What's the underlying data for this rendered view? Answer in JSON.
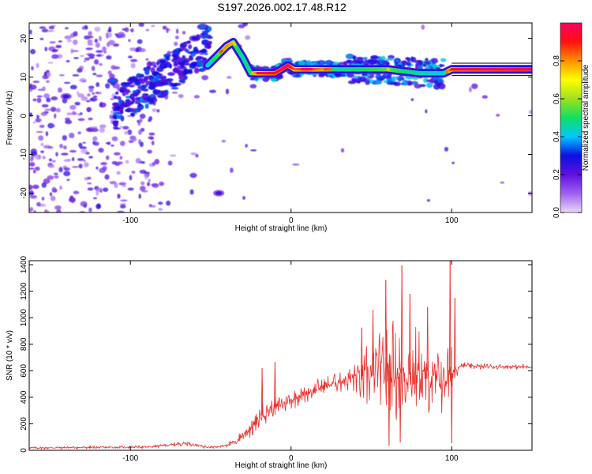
{
  "title": "S197.2026.002.17.48.R12",
  "chart_data": [
    {
      "type": "heatmap",
      "name": "spectrogram",
      "xlabel": "Height of straight line (km)",
      "ylabel": "Frequency (Hz)",
      "xlim": [
        -163,
        150
      ],
      "ylim": [
        -25,
        24
      ],
      "xticks": [
        -100,
        0,
        100
      ],
      "yticks": [
        -20,
        -10,
        0,
        10,
        20
      ],
      "colorbar": {
        "label": "Normalized spectral amplitude",
        "range": [
          0,
          1
        ],
        "ticks": [
          0.0,
          0.2,
          0.4,
          0.6,
          0.8
        ],
        "colors": [
          "#e8d8f8",
          "#a060f0",
          "#6010e0",
          "#0a10e0",
          "#00c8ff",
          "#10e060",
          "#a0e020",
          "#ffff00",
          "#ff9000",
          "#ff1010",
          "#ff0060"
        ]
      },
      "ridge": {
        "x": [
          -52,
          -40,
          -36,
          -30,
          -25,
          -20,
          -10,
          -2,
          2,
          10,
          30,
          60,
          80,
          95,
          100,
          150
        ],
        "freq": [
          13,
          18,
          19,
          15,
          11,
          11,
          11,
          13,
          12,
          12,
          12,
          12,
          11,
          11,
          12,
          12
        ],
        "amplitude": [
          0.45,
          0.7,
          0.6,
          0.5,
          0.55,
          0.8,
          0.9,
          0.95,
          0.75,
          0.85,
          0.5,
          0.6,
          0.5,
          0.45,
          0.85,
          0.95
        ]
      },
      "patches": [
        {
          "x": -108,
          "freq": 2,
          "amplitude": 0.3
        },
        {
          "x": -111,
          "freq": 9,
          "amplitude": 0.35
        },
        {
          "x": -80,
          "freq": 14,
          "amplitude": 0.3
        },
        {
          "x": -60,
          "freq": 20,
          "amplitude": 0.3
        },
        {
          "x": -55,
          "freq": 23,
          "amplitude": 0.35
        },
        {
          "x": -45,
          "freq": -20,
          "amplitude": 0.25
        },
        {
          "x": -140,
          "freq": 5,
          "amplitude": 0.25
        }
      ]
    },
    {
      "type": "line",
      "name": "snr",
      "xlabel": "Height of straight line (km)",
      "ylabel": "SNR (10 * v/v)",
      "xlim": [
        -163,
        150
      ],
      "ylim": [
        0,
        1430
      ],
      "xticks": [
        -100,
        0,
        100
      ],
      "yticks": [
        0,
        200,
        400,
        600,
        800,
        1000,
        1200,
        1400
      ],
      "color": "#e8302a",
      "series": [
        {
          "name": "SNR",
          "envelope": {
            "x": [
              -163,
              -90,
              -75,
              -65,
              -55,
              -45,
              -35,
              -25,
              -15,
              -5,
              5,
              20,
              30,
              40,
              50,
              60,
              70,
              80,
              90,
              98,
              105,
              120,
              150
            ],
            "mean": [
              18,
              25,
              40,
              55,
              30,
              25,
              60,
              170,
              300,
              350,
              410,
              480,
              520,
              560,
              560,
              600,
              580,
              560,
              520,
              560,
              640,
              630,
              630
            ],
            "amp": [
              10,
              12,
              18,
              25,
              15,
              12,
              30,
              90,
              110,
              90,
              80,
              80,
              90,
              160,
              330,
              420,
              430,
              380,
              270,
              320,
              30,
              25,
              22
            ]
          },
          "spikes": [
            {
              "x": -18,
              "y": 620
            },
            {
              "x": -10,
              "y": 665
            },
            {
              "x": 44,
              "y": 925
            },
            {
              "x": 51,
              "y": 1060
            },
            {
              "x": 59,
              "y": 1285
            },
            {
              "x": 69,
              "y": 1395
            },
            {
              "x": 74,
              "y": 1180
            },
            {
              "x": 85,
              "y": 1080
            },
            {
              "x": 99,
              "y": 1430
            },
            {
              "x": 102,
              "y": 1150
            },
            {
              "x": 61,
              "y": 35
            },
            {
              "x": 68,
              "y": 60
            },
            {
              "x": 100,
              "y": 55
            }
          ]
        }
      ]
    }
  ]
}
